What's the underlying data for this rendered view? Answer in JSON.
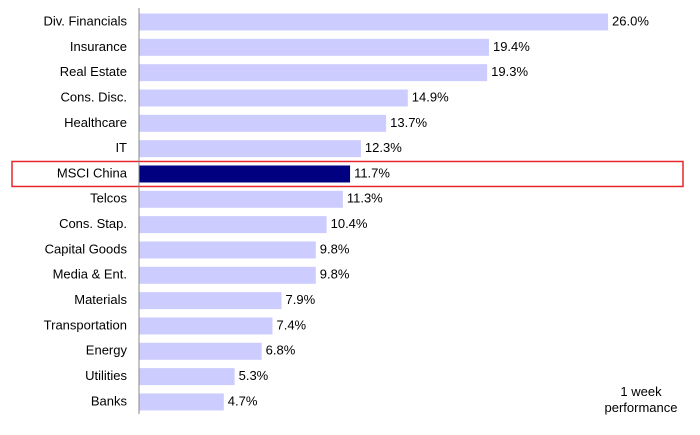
{
  "chart_data": {
    "type": "hbar",
    "categories": [
      "Div. Financials",
      "Insurance",
      "Real Estate",
      "Cons. Disc.",
      "Healthcare",
      "IT",
      "MSCI China",
      "Telcos",
      "Cons. Stap.",
      "Capital Goods",
      "Media & Ent.",
      "Materials",
      "Transportation",
      "Energy",
      "Utilities",
      "Banks"
    ],
    "values": [
      26.0,
      19.4,
      19.3,
      14.9,
      13.7,
      12.3,
      11.7,
      11.3,
      10.4,
      9.8,
      9.8,
      7.9,
      7.4,
      6.8,
      5.3,
      4.7
    ],
    "value_labels": [
      "26.0%",
      "19.4%",
      "19.3%",
      "14.9%",
      "13.7%",
      "12.3%",
      "11.7%",
      "11.3%",
      "10.4%",
      "9.8%",
      "9.8%",
      "7.9%",
      "7.4%",
      "6.8%",
      "5.3%",
      "4.7%"
    ],
    "color": "#ccccff",
    "highlight": "MSCI China",
    "highlight_color": "#000080",
    "highlight_box_color": "#e8262b",
    "annotation": "1 week performance"
  }
}
